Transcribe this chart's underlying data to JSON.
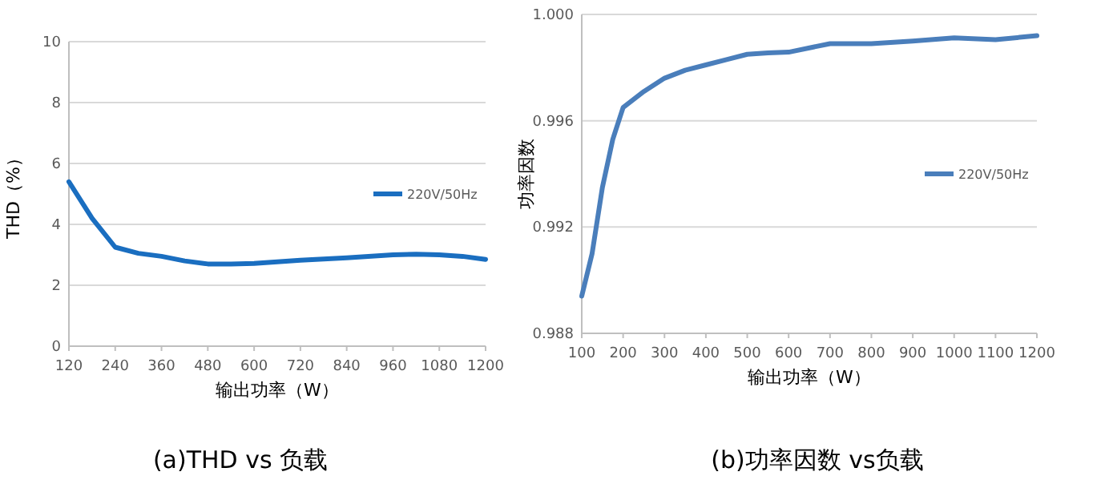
{
  "chart_data": [
    {
      "type": "line",
      "title": "(a)THD vs 负载",
      "xlabel": "输出功率（W）",
      "ylabel": "THD（%）",
      "legend": "right",
      "grid": "y",
      "xlim": [
        120,
        1200
      ],
      "xticks": [
        120,
        240,
        360,
        480,
        600,
        720,
        840,
        960,
        1080,
        1200
      ],
      "ylim": [
        0,
        10
      ],
      "yticks": [
        0,
        2,
        4,
        6,
        8,
        10
      ],
      "x": [
        120,
        180,
        240,
        300,
        360,
        420,
        480,
        540,
        600,
        720,
        840,
        960,
        1020,
        1080,
        1140,
        1200
      ],
      "series": [
        {
          "name": "220V/50Hz",
          "color": "#1a6ec0",
          "values": [
            5.4,
            4.2,
            3.25,
            3.05,
            2.95,
            2.8,
            2.7,
            2.7,
            2.72,
            2.82,
            2.9,
            3.0,
            3.02,
            3.0,
            2.95,
            2.85
          ]
        }
      ]
    },
    {
      "type": "line",
      "title": "(b)功率因数 vs负载",
      "xlabel": "输出功率（W）",
      "ylabel": "功率因数",
      "legend": "right",
      "grid": "y",
      "xlim": [
        100,
        1200
      ],
      "xticks": [
        100,
        200,
        300,
        400,
        500,
        600,
        700,
        800,
        900,
        1000,
        1100,
        1200
      ],
      "ylim": [
        0.988,
        1.0
      ],
      "yticks": [
        0.988,
        0.992,
        0.996,
        {
          "value": 1.0,
          "label": "1.000"
        }
      ],
      "x": [
        100,
        125,
        150,
        175,
        200,
        250,
        300,
        350,
        400,
        450,
        500,
        550,
        600,
        700,
        800,
        900,
        1000,
        1100,
        1200
      ],
      "series": [
        {
          "name": "220V/50Hz",
          "color": "#4a7ebb",
          "values": [
            0.9894,
            0.991,
            0.9935,
            0.9953,
            0.9965,
            0.9971,
            0.9976,
            0.9979,
            0.9981,
            0.9983,
            0.9985,
            0.99855,
            0.99858,
            0.9989,
            0.9989,
            0.999,
            0.99912,
            0.99905,
            0.9992
          ]
        }
      ]
    }
  ]
}
